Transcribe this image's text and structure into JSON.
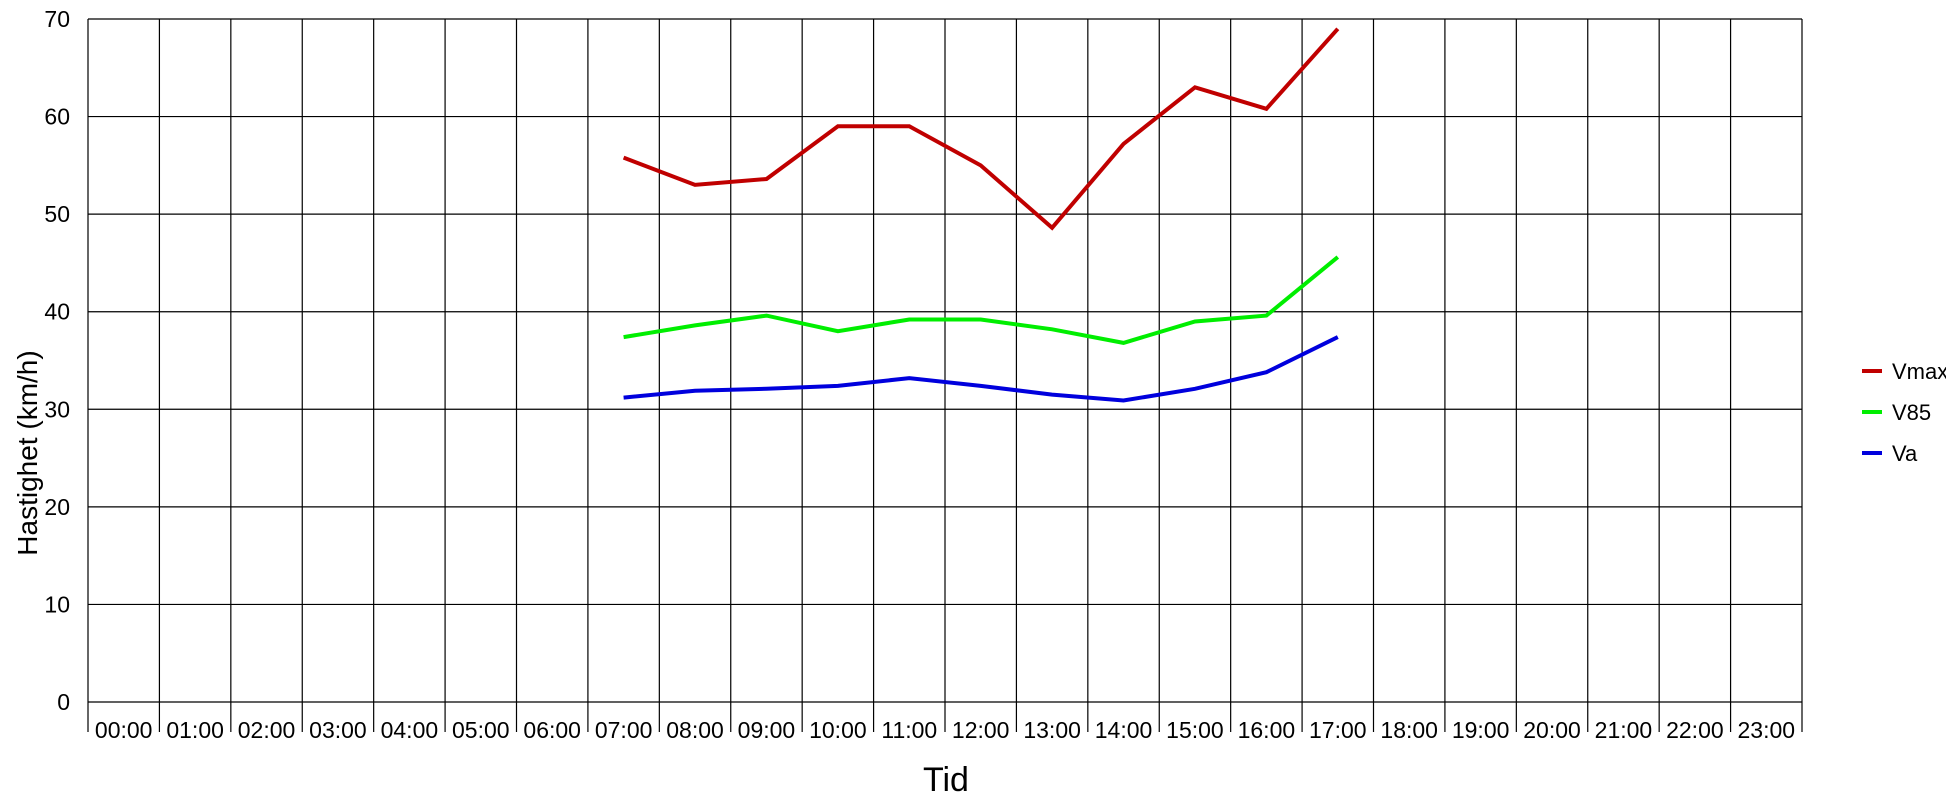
{
  "chart_data": {
    "type": "line",
    "title": "",
    "xlabel": "Tid",
    "ylabel": "Hastighet (km/h)",
    "ylim": [
      0,
      70
    ],
    "yticks": [
      0,
      10,
      20,
      30,
      40,
      50,
      60,
      70
    ],
    "grid": true,
    "legend_position": "right",
    "categories": [
      "00:00",
      "01:00",
      "02:00",
      "03:00",
      "04:00",
      "05:00",
      "06:00",
      "07:00",
      "08:00",
      "09:00",
      "10:00",
      "11:00",
      "12:00",
      "13:00",
      "14:00",
      "15:00",
      "16:00",
      "17:00",
      "18:00",
      "19:00",
      "20:00",
      "21:00",
      "22:00",
      "23:00"
    ],
    "series": [
      {
        "name": "Vmax",
        "color": "#c00000",
        "values": [
          null,
          null,
          null,
          null,
          null,
          null,
          null,
          55.8,
          53.0,
          53.6,
          59.0,
          59.0,
          55.0,
          48.6,
          57.2,
          63.0,
          60.8,
          69.0,
          null,
          null,
          null,
          null,
          null,
          null
        ]
      },
      {
        "name": "V85",
        "color": "#00ee00",
        "values": [
          null,
          null,
          null,
          null,
          null,
          null,
          null,
          37.4,
          38.6,
          39.6,
          38.0,
          39.2,
          39.2,
          38.2,
          36.8,
          39.0,
          39.6,
          45.6,
          null,
          null,
          null,
          null,
          null,
          null
        ]
      },
      {
        "name": "Va",
        "color": "#0000dd",
        "values": [
          null,
          null,
          null,
          null,
          null,
          null,
          null,
          31.2,
          31.9,
          32.1,
          32.4,
          33.2,
          32.4,
          31.5,
          30.9,
          32.1,
          33.8,
          37.4,
          null,
          null,
          null,
          null,
          null,
          null
        ]
      }
    ]
  }
}
